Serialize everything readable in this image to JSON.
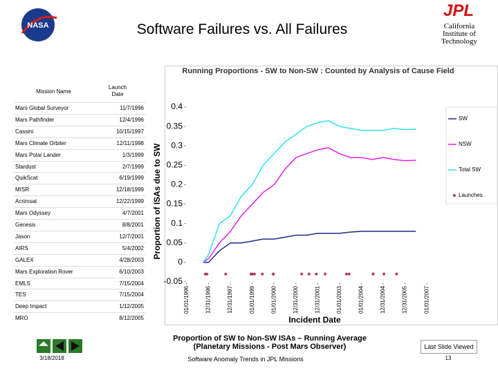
{
  "header": {
    "nasa_logo": "NASA",
    "title": "Software Failures vs. All Failures",
    "jpl_logo": "JPL",
    "institution": "California Institute of Technology"
  },
  "table": {
    "columns": [
      "Mission Name",
      "Launch Date"
    ],
    "rows": [
      [
        "Mars Global Surveyor",
        "11/7/1996"
      ],
      [
        "Mars Pathfinder",
        "12/4/1996"
      ],
      [
        "Cassini",
        "10/15/1997"
      ],
      [
        "Mars Climate Orbiter",
        "12/11/1998"
      ],
      [
        "Mars Polar Lander",
        "1/3/1999"
      ],
      [
        "Stardust",
        "2/7/1999"
      ],
      [
        "QuikScat",
        "6/19/1999"
      ],
      [
        "MISR",
        "12/18/1999"
      ],
      [
        "Acrimsat",
        "12/22/1999"
      ],
      [
        "Mars Odyssey",
        "4/7/2001"
      ],
      [
        "Genesis",
        "8/8/2001"
      ],
      [
        "Jason",
        "12/7/2001"
      ],
      [
        "AIRS",
        "5/4/2002"
      ],
      [
        "GALEX",
        "4/28/2003"
      ],
      [
        "Mars Exploration Rover",
        "6/10/2003"
      ],
      [
        "EMLS",
        "7/15/2004"
      ],
      [
        "TES",
        "7/15/2004"
      ],
      [
        "Deep Impact",
        "1/12/2005"
      ],
      [
        "MRO",
        "8/12/2005"
      ]
    ]
  },
  "chart_data": {
    "type": "line",
    "title": "Running Proportions - SW to Non-SW : Counted by Analysis of Cause Field",
    "xlabel": "Incident Date",
    "ylabel": "Proportion of ISAs due to SW",
    "x": [
      "1996-10",
      "1997-01",
      "1997-07",
      "1998-01",
      "1998-07",
      "1999-01",
      "1999-07",
      "2000-01",
      "2000-07",
      "2001-01",
      "2001-07",
      "2002-01",
      "2002-07",
      "2003-01",
      "2003-07",
      "2004-01",
      "2004-07",
      "2005-01",
      "2005-07",
      "2006-01",
      "2006-07"
    ],
    "xlim": [
      "1995-10-01",
      "2007-04-01"
    ],
    "xticks": [
      {
        "value": "1996-01-01",
        "label": "01/01/1996"
      },
      {
        "value": "1996-12-31",
        "label": "12/31/1996"
      },
      {
        "value": "1997-12-31",
        "label": "12/31/1997"
      },
      {
        "value": "1999-01-01",
        "label": "01/01/1999"
      },
      {
        "value": "2000-01-01",
        "label": "01/01/2000"
      },
      {
        "value": "2000-12-31",
        "label": "12/31/2000"
      },
      {
        "value": "2001-12-31",
        "label": "12/31/2001"
      },
      {
        "value": "2003-01-01",
        "label": "01/01/2003"
      },
      {
        "value": "2004-01-01",
        "label": "01/01/2004"
      },
      {
        "value": "2004-12-31",
        "label": "12/31/2004"
      },
      {
        "value": "2005-12-31",
        "label": "12/31/2005"
      },
      {
        "value": "2007-01-01",
        "label": "01/01/2007"
      }
    ],
    "ylim": [
      -0.05,
      0.4
    ],
    "yticks": [
      -0.05,
      0,
      0.05,
      0.1,
      0.15,
      0.2,
      0.25,
      0.3,
      0.35,
      0.4
    ],
    "legend": "right",
    "series": [
      {
        "name": "SW",
        "color": "#1f2a80",
        "values": [
          0,
          0,
          0.03,
          0.05,
          0.05,
          0.055,
          0.06,
          0.06,
          0.065,
          0.07,
          0.07,
          0.075,
          0.075,
          0.075,
          0.078,
          0.08,
          0.08,
          0.08,
          0.08,
          0.08,
          0.08
        ]
      },
      {
        "name": "NSW",
        "color": "#e020e0",
        "values": [
          0,
          0.01,
          0.05,
          0.08,
          0.12,
          0.15,
          0.18,
          0.2,
          0.24,
          0.27,
          0.28,
          0.29,
          0.295,
          0.28,
          0.27,
          0.27,
          0.265,
          0.27,
          0.265,
          0.262,
          0.263
        ]
      },
      {
        "name": "Total SW",
        "color": "#30e0f0",
        "values": [
          0,
          0.02,
          0.1,
          0.12,
          0.17,
          0.2,
          0.25,
          0.28,
          0.31,
          0.33,
          0.35,
          0.36,
          0.365,
          0.35,
          0.345,
          0.34,
          0.34,
          0.34,
          0.345,
          0.342,
          0.343
        ]
      },
      {
        "name": "Launches",
        "color": "#b03060",
        "type": "scatter",
        "x": [
          "1996-11-07",
          "1996-12-04",
          "1997-10-15",
          "1998-12-11",
          "1999-01-03",
          "1999-02-07",
          "1999-06-19",
          "1999-12-18",
          "1999-12-22",
          "2001-04-07",
          "2001-08-08",
          "2001-12-07",
          "2002-05-04",
          "2003-04-28",
          "2003-06-10",
          "2004-07-15",
          "2004-07-15",
          "2005-01-12",
          "2005-08-12"
        ],
        "values": [
          -0.03,
          -0.03,
          -0.03,
          -0.03,
          -0.03,
          -0.03,
          -0.03,
          -0.03,
          -0.03,
          -0.03,
          -0.03,
          -0.03,
          -0.03,
          -0.03,
          -0.03,
          -0.03,
          -0.03,
          -0.03,
          -0.03
        ]
      }
    ]
  },
  "caption": "Proportion of SW to Non-SW ISAs – Running Average (Planetary Missions - Post Mars Observer)",
  "footer": {
    "date": "3/18/2018",
    "course": "Software Anomaly Trends in JPL Missions",
    "page": "13",
    "last_slide": "Last Slide Viewed"
  }
}
